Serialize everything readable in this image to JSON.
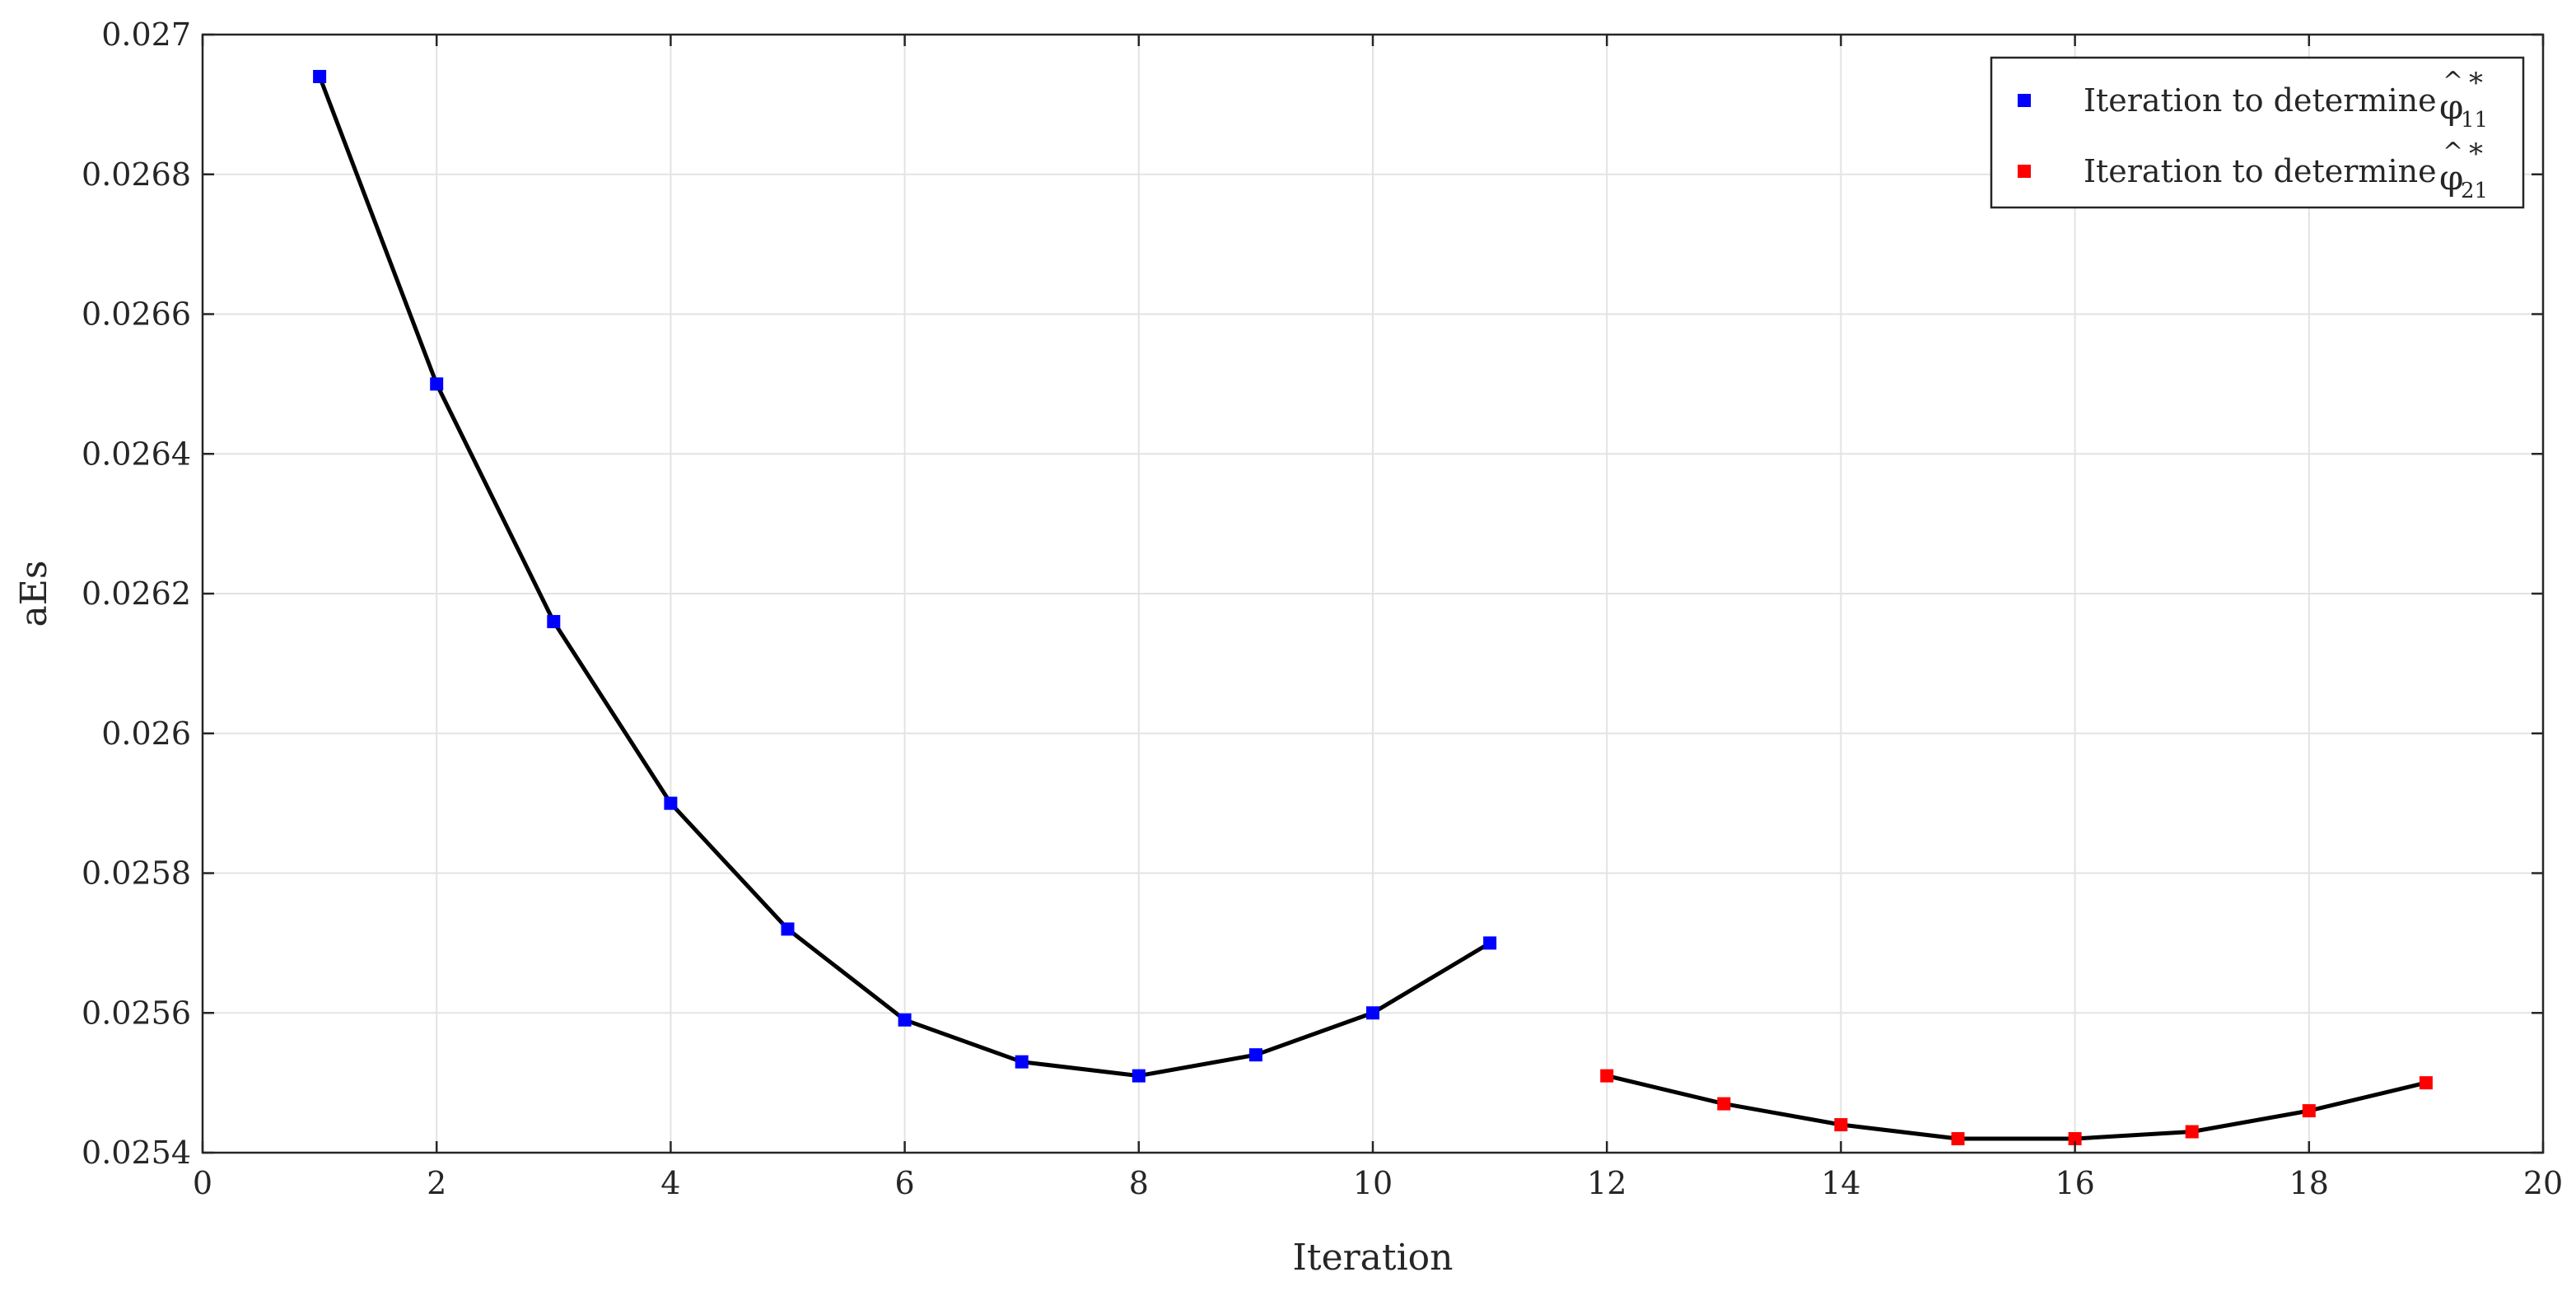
{
  "chart_data": {
    "type": "line",
    "xlabel": "Iteration",
    "ylabel": "aEs",
    "xlim": [
      0,
      20
    ],
    "ylim": [
      0.0254,
      0.027
    ],
    "x_ticks": [
      0,
      2,
      4,
      6,
      8,
      10,
      12,
      14,
      16,
      18,
      20
    ],
    "x_tick_labels": [
      "0",
      "2",
      "4",
      "6",
      "8",
      "10",
      "12",
      "14",
      "16",
      "18",
      "20"
    ],
    "y_ticks": [
      0.0254,
      0.0256,
      0.0258,
      0.026,
      0.0262,
      0.0264,
      0.0266,
      0.0268,
      0.027
    ],
    "y_tick_labels": [
      "0.0254",
      "0.0256",
      "0.0258",
      "0.026",
      "0.0262",
      "0.0264",
      "0.0266",
      "0.0268",
      "0.027"
    ],
    "grid": true,
    "legend_position": "top-right",
    "series": [
      {
        "name": "Iteration to determine φ̂*11",
        "legend_text": "Iteration to determine ",
        "legend_symbol": {
          "base": "φ",
          "accent": "^",
          "superscript": "*",
          "subscript": "11"
        },
        "marker_color": "#0000ff",
        "line_color": "#000000",
        "x": [
          1,
          2,
          3,
          4,
          5,
          6,
          7,
          8,
          9,
          10,
          11
        ],
        "y": [
          0.02694,
          0.0265,
          0.02616,
          0.0259,
          0.02572,
          0.02559,
          0.02553,
          0.02551,
          0.02554,
          0.0256,
          0.0257
        ]
      },
      {
        "name": "Iteration to determine φ̂*21",
        "legend_text": "Iteration to determine ",
        "legend_symbol": {
          "base": "φ",
          "accent": "^",
          "superscript": "*",
          "subscript": "21"
        },
        "marker_color": "#ff0000",
        "line_color": "#000000",
        "x": [
          12,
          13,
          14,
          15,
          16,
          17,
          18,
          19
        ],
        "y": [
          0.02551,
          0.02547,
          0.02544,
          0.02542,
          0.02542,
          0.02543,
          0.02546,
          0.0255
        ]
      }
    ]
  }
}
